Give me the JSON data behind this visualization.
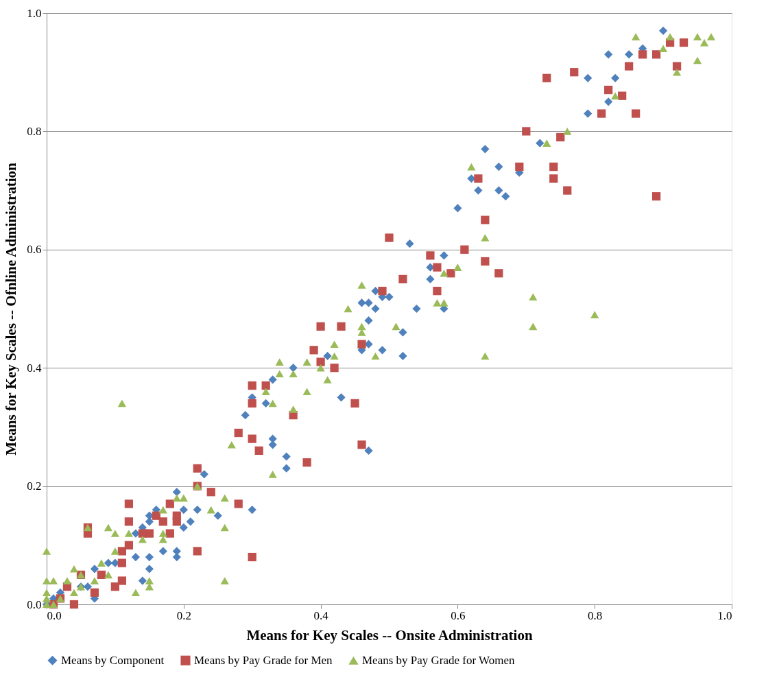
{
  "chart_data": {
    "type": "scatter",
    "xlabel": "Means for Key  Scales -- Onsite Administration",
    "ylabel": "Means for Key Scales -- Ofnline Administration",
    "xlim": [
      0,
      1
    ],
    "ylim": [
      0,
      1
    ],
    "xticks": [
      {
        "value": 0,
        "label": "0.0"
      },
      0.2,
      0.4,
      0.6,
      0.8,
      {
        "value": 1,
        "label": "1.0"
      }
    ],
    "yticks": [
      {
        "value": 0,
        "label": "0.0"
      },
      0.2,
      0.4,
      0.6,
      0.8,
      {
        "value": 1,
        "label": "1.0"
      }
    ],
    "grid": "y",
    "legend": "bottom",
    "series": [
      {
        "name": "Means by Component",
        "color": "#4f81bd",
        "marker": "diamond",
        "x": [
          0.9,
          0.82,
          0.85,
          0.87,
          0.79,
          0.83,
          0.82,
          0.79,
          0.64,
          0.72,
          0.66,
          0.69,
          0.62,
          0.63,
          0.66,
          0.67,
          0.6,
          0.53,
          0.58,
          0.56,
          0.56,
          0.58,
          0.54,
          0.48,
          0.5,
          0.49,
          0.46,
          0.47,
          0.48,
          0.47,
          0.52,
          0.47,
          0.46,
          0.49,
          0.52,
          0.41,
          0.36,
          0.33,
          0.3,
          0.32,
          0.29,
          0.43,
          0.33,
          0.33,
          0.35,
          0.35,
          0.47,
          0.3,
          0.2,
          0.23,
          0.22,
          0.19,
          0.21,
          0.2,
          0.25,
          0.15,
          0.15,
          0.16,
          0.13,
          0.14,
          0.19,
          0.19,
          0.17,
          0.15,
          0.15,
          0.14,
          0.13,
          0.1,
          0.09,
          0.07,
          0.07,
          0.05,
          0.01,
          0.0,
          0.02,
          0.06
        ],
        "values": [
          0.97,
          0.93,
          0.93,
          0.94,
          0.89,
          0.89,
          0.85,
          0.83,
          0.77,
          0.78,
          0.74,
          0.73,
          0.72,
          0.7,
          0.7,
          0.69,
          0.67,
          0.61,
          0.59,
          0.57,
          0.55,
          0.5,
          0.5,
          0.53,
          0.52,
          0.52,
          0.51,
          0.51,
          0.5,
          0.48,
          0.46,
          0.44,
          0.43,
          0.43,
          0.42,
          0.42,
          0.4,
          0.38,
          0.35,
          0.34,
          0.32,
          0.35,
          0.28,
          0.27,
          0.25,
          0.23,
          0.26,
          0.16,
          0.16,
          0.22,
          0.16,
          0.19,
          0.14,
          0.13,
          0.15,
          0.15,
          0.14,
          0.16,
          0.12,
          0.13,
          0.09,
          0.08,
          0.09,
          0.08,
          0.06,
          0.04,
          0.08,
          0.07,
          0.07,
          0.06,
          0.01,
          0.03,
          0.01,
          0.0,
          0.02,
          0.03
        ]
      },
      {
        "name": "Means by Pay Grade for Men",
        "color": "#c0504d",
        "marker": "square",
        "x": [
          0.91,
          0.93,
          0.87,
          0.89,
          0.85,
          0.92,
          0.73,
          0.77,
          0.82,
          0.84,
          0.81,
          0.86,
          0.7,
          0.75,
          0.69,
          0.74,
          0.74,
          0.76,
          0.63,
          0.89,
          0.64,
          0.5,
          0.61,
          0.56,
          0.57,
          0.64,
          0.66,
          0.59,
          0.52,
          0.57,
          0.49,
          0.4,
          0.43,
          0.46,
          0.39,
          0.4,
          0.42,
          0.3,
          0.32,
          0.3,
          0.45,
          0.36,
          0.28,
          0.3,
          0.31,
          0.46,
          0.38,
          0.28,
          0.3,
          0.22,
          0.22,
          0.24,
          0.22,
          0.19,
          0.19,
          0.18,
          0.17,
          0.18,
          0.16,
          0.15,
          0.14,
          0.12,
          0.12,
          0.12,
          0.11,
          0.11,
          0.11,
          0.1,
          0.08,
          0.06,
          0.06,
          0.07,
          0.05,
          0.04,
          0.03,
          0.02,
          0.01
        ],
        "values": [
          0.95,
          0.95,
          0.93,
          0.93,
          0.91,
          0.91,
          0.89,
          0.9,
          0.87,
          0.86,
          0.83,
          0.83,
          0.8,
          0.79,
          0.74,
          0.74,
          0.72,
          0.7,
          0.72,
          0.69,
          0.65,
          0.62,
          0.6,
          0.59,
          0.57,
          0.58,
          0.56,
          0.56,
          0.55,
          0.53,
          0.53,
          0.47,
          0.47,
          0.44,
          0.43,
          0.41,
          0.4,
          0.37,
          0.37,
          0.34,
          0.34,
          0.32,
          0.29,
          0.28,
          0.26,
          0.27,
          0.24,
          0.17,
          0.08,
          0.23,
          0.2,
          0.19,
          0.09,
          0.15,
          0.14,
          0.17,
          0.14,
          0.12,
          0.15,
          0.12,
          0.12,
          0.17,
          0.14,
          0.1,
          0.09,
          0.07,
          0.04,
          0.03,
          0.05,
          0.13,
          0.12,
          0.02,
          0.05,
          0.0,
          0.03,
          0.01,
          0.0
        ]
      },
      {
        "name": "Means by Pay Grade for Women",
        "color": "#9bbb59",
        "marker": "triangle",
        "x": [
          0.86,
          0.91,
          0.95,
          0.97,
          0.96,
          0.9,
          0.95,
          0.92,
          0.83,
          0.76,
          0.73,
          0.62,
          0.64,
          0.6,
          0.58,
          0.58,
          0.57,
          0.46,
          0.44,
          0.46,
          0.46,
          0.51,
          0.64,
          0.42,
          0.42,
          0.48,
          0.38,
          0.34,
          0.36,
          0.4,
          0.41,
          0.34,
          0.32,
          0.38,
          0.33,
          0.36,
          0.33,
          0.71,
          0.71,
          0.8,
          0.27,
          0.26,
          0.26,
          0.26,
          0.24,
          0.22,
          0.2,
          0.19,
          0.17,
          0.17,
          0.17,
          0.15,
          0.15,
          0.14,
          0.13,
          0.12,
          0.11,
          0.1,
          0.1,
          0.09,
          0.09,
          0.08,
          0.07,
          0.06,
          0.05,
          0.05,
          0.04,
          0.04,
          0.03,
          0.02,
          0.01,
          0.01,
          0.0,
          0.0,
          0.0,
          0.0,
          0.0
        ],
        "values": [
          0.96,
          0.96,
          0.96,
          0.96,
          0.95,
          0.94,
          0.92,
          0.9,
          0.86,
          0.8,
          0.78,
          0.74,
          0.62,
          0.57,
          0.56,
          0.51,
          0.51,
          0.54,
          0.5,
          0.47,
          0.46,
          0.47,
          0.42,
          0.44,
          0.42,
          0.42,
          0.41,
          0.41,
          0.39,
          0.4,
          0.38,
          0.39,
          0.36,
          0.36,
          0.34,
          0.33,
          0.22,
          0.52,
          0.47,
          0.49,
          0.27,
          0.18,
          0.13,
          0.04,
          0.16,
          0.2,
          0.18,
          0.18,
          0.16,
          0.12,
          0.11,
          0.04,
          0.03,
          0.11,
          0.02,
          0.12,
          0.34,
          0.09,
          0.12,
          0.13,
          0.05,
          0.07,
          0.04,
          0.13,
          0.05,
          0.03,
          0.06,
          0.02,
          0.04,
          0.01,
          0.04,
          0.0,
          0.09,
          0.04,
          0.02,
          0.01,
          0.0
        ]
      }
    ]
  }
}
